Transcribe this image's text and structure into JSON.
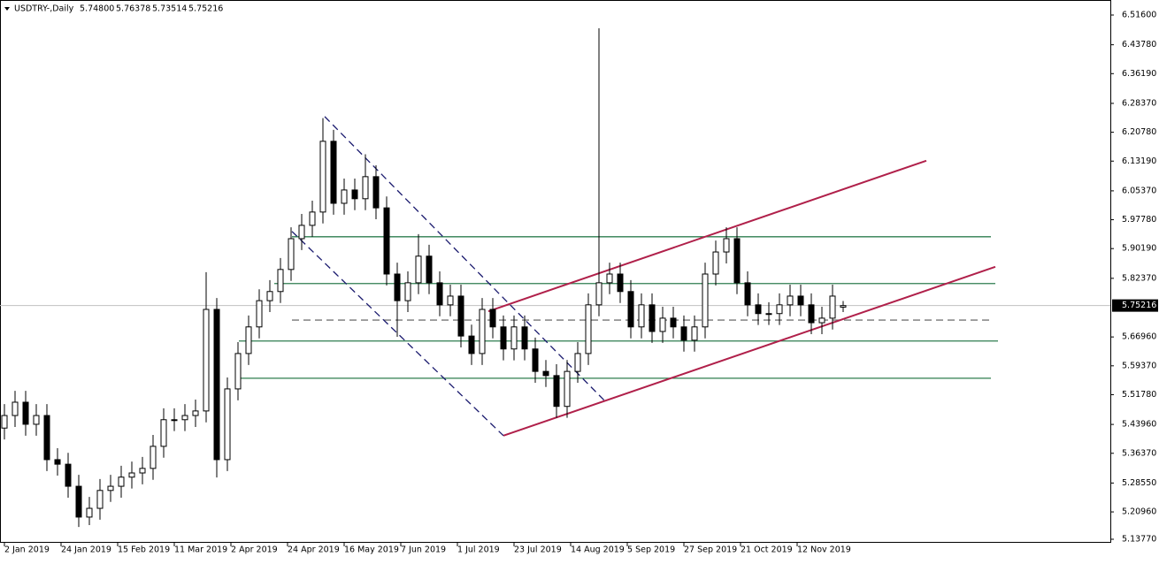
{
  "chart_data": {
    "type": "candlestick",
    "header": "USDTRY-,Daily",
    "ohlc_text": [
      "5.74800",
      "5.76378",
      "5.73514",
      "5.75216"
    ],
    "x": [
      0,
      3,
      6,
      9,
      12,
      15,
      18,
      21,
      24,
      27,
      30,
      33,
      36,
      39,
      42,
      45,
      48,
      51,
      54,
      57,
      60,
      63,
      66,
      69,
      72,
      75,
      78,
      81,
      84,
      87,
      90,
      93,
      96,
      99,
      102,
      105,
      108,
      111,
      114,
      117,
      120,
      123,
      126,
      129,
      132,
      135,
      138,
      141,
      144,
      147,
      150,
      153,
      156,
      159,
      162,
      165,
      168,
      171,
      174,
      177,
      180,
      183,
      186,
      189,
      192,
      195,
      198,
      201,
      204,
      207,
      210,
      213,
      216,
      219,
      222,
      225,
      228,
      231,
      234,
      237
    ],
    "open": [
      5.43,
      5.463,
      5.498,
      5.44,
      5.463,
      5.347,
      5.335,
      5.277,
      5.196,
      5.219,
      5.266,
      5.277,
      5.301,
      5.312,
      5.324,
      5.382,
      5.452,
      5.452,
      5.463,
      5.475,
      5.742,
      5.347,
      5.533,
      5.626,
      5.696,
      5.765,
      5.789,
      5.847,
      5.928,
      5.963,
      5.998,
      6.184,
      6.021,
      6.056,
      6.033,
      6.091,
      6.009,
      5.835,
      5.765,
      5.812,
      5.882,
      5.812,
      5.754,
      5.777,
      5.672,
      5.626,
      5.742,
      5.696,
      5.638,
      5.696,
      5.638,
      5.579,
      5.568,
      5.487,
      5.579,
      5.626,
      5.754,
      5.812,
      5.835,
      5.789,
      5.696,
      5.754,
      5.684,
      5.719,
      5.696,
      5.661,
      5.696,
      5.835,
      5.893,
      5.928,
      5.812,
      5.754,
      5.731,
      5.731,
      5.754,
      5.777,
      5.754,
      5.707,
      5.719,
      5.748
    ],
    "high": [
      5.493,
      5.528,
      5.528,
      5.493,
      5.493,
      5.377,
      5.365,
      5.307,
      5.249,
      5.296,
      5.307,
      5.331,
      5.342,
      5.354,
      5.412,
      5.482,
      5.482,
      5.493,
      5.505,
      5.84,
      5.772,
      5.563,
      5.656,
      5.726,
      5.795,
      5.819,
      5.877,
      5.958,
      5.993,
      6.028,
      6.245,
      6.214,
      6.086,
      6.086,
      6.15,
      6.121,
      6.039,
      5.865,
      5.842,
      5.94,
      5.912,
      5.842,
      5.807,
      5.807,
      5.702,
      5.772,
      5.772,
      5.726,
      5.726,
      5.726,
      5.668,
      5.609,
      5.598,
      5.609,
      5.656,
      5.784,
      6.481,
      5.865,
      5.865,
      5.819,
      5.784,
      5.784,
      5.749,
      5.749,
      5.726,
      5.726,
      5.865,
      5.923,
      5.958,
      5.958,
      5.842,
      5.784,
      5.761,
      5.784,
      5.807,
      5.807,
      5.784,
      5.749,
      5.807,
      5.764
    ],
    "low": [
      5.4,
      5.433,
      5.41,
      5.41,
      5.317,
      5.305,
      5.247,
      5.17,
      5.175,
      5.189,
      5.236,
      5.247,
      5.271,
      5.282,
      5.294,
      5.352,
      5.422,
      5.422,
      5.433,
      5.445,
      5.3,
      5.317,
      5.503,
      5.596,
      5.666,
      5.735,
      5.759,
      5.817,
      5.898,
      5.933,
      5.968,
      5.991,
      5.991,
      6.003,
      6.003,
      5.979,
      5.805,
      5.67,
      5.735,
      5.782,
      5.782,
      5.724,
      5.724,
      5.642,
      5.596,
      5.596,
      5.666,
      5.608,
      5.608,
      5.608,
      5.549,
      5.538,
      5.457,
      5.457,
      5.549,
      5.596,
      5.724,
      5.782,
      5.759,
      5.666,
      5.666,
      5.654,
      5.654,
      5.666,
      5.631,
      5.631,
      5.666,
      5.805,
      5.863,
      5.782,
      5.724,
      5.701,
      5.701,
      5.701,
      5.724,
      5.724,
      5.677,
      5.677,
      5.689,
      5.735
    ],
    "close": [
      5.463,
      5.498,
      5.44,
      5.463,
      5.347,
      5.335,
      5.277,
      5.196,
      5.219,
      5.266,
      5.277,
      5.301,
      5.312,
      5.324,
      5.382,
      5.452,
      5.452,
      5.463,
      5.475,
      5.742,
      5.347,
      5.533,
      5.626,
      5.696,
      5.765,
      5.789,
      5.847,
      5.928,
      5.963,
      5.998,
      6.184,
      6.021,
      6.056,
      6.033,
      6.091,
      6.009,
      5.835,
      5.765,
      5.812,
      5.882,
      5.812,
      5.754,
      5.777,
      5.672,
      5.626,
      5.742,
      5.696,
      5.638,
      5.696,
      5.638,
      5.579,
      5.568,
      5.487,
      5.579,
      5.626,
      5.754,
      5.812,
      5.835,
      5.789,
      5.696,
      5.754,
      5.684,
      5.719,
      5.696,
      5.661,
      5.696,
      5.835,
      5.893,
      5.928,
      5.812,
      5.754,
      5.731,
      5.731,
      5.754,
      5.777,
      5.754,
      5.707,
      5.719,
      5.777,
      5.752
    ],
    "xlim": [
      -1.25,
      312.5
    ],
    "ylim": [
      5.1284,
      6.5555
    ],
    "xticks": [
      {
        "value": 0,
        "label": "2 Jan 2019"
      },
      {
        "value": 16,
        "label": "24 Jan 2019"
      },
      {
        "value": 32,
        "label": "15 Feb 2019"
      },
      {
        "value": 48,
        "label": "11 Mar 2019"
      },
      {
        "value": 64,
        "label": "2 Apr 2019"
      },
      {
        "value": 80,
        "label": "24 Apr 2019"
      },
      {
        "value": 96,
        "label": "16 May 2019"
      },
      {
        "value": 112,
        "label": "7 Jun 2019"
      },
      {
        "value": 128,
        "label": "1 Jul 2019"
      },
      {
        "value": 144,
        "label": "23 Jul 2019"
      },
      {
        "value": 160,
        "label": "14 Aug 2019"
      },
      {
        "value": 176,
        "label": "5 Sep 2019"
      },
      {
        "value": 192,
        "label": "27 Sep 2019"
      },
      {
        "value": 208,
        "label": "21 Oct 2019"
      },
      {
        "value": 224,
        "label": "12 Nov 2019"
      }
    ],
    "yticks": [
      {
        "value": 6.516,
        "label": "6.51600"
      },
      {
        "value": 6.4378,
        "label": "6.43780"
      },
      {
        "value": 6.3619,
        "label": "6.36190"
      },
      {
        "value": 6.2837,
        "label": "6.28370"
      },
      {
        "value": 6.2078,
        "label": "6.20780"
      },
      {
        "value": 6.1319,
        "label": "6.13190"
      },
      {
        "value": 6.0537,
        "label": "6.05370"
      },
      {
        "value": 5.9778,
        "label": "5.97780"
      },
      {
        "value": 5.9019,
        "label": "5.90190"
      },
      {
        "value": 5.8237,
        "label": "5.82370"
      },
      {
        "value": 5.6696,
        "label": "5.66960"
      },
      {
        "value": 5.5937,
        "label": "5.59370"
      },
      {
        "value": 5.5178,
        "label": "5.51780"
      },
      {
        "value": 5.4396,
        "label": "5.43960"
      },
      {
        "value": 5.3637,
        "label": "5.36370"
      },
      {
        "value": 5.2855,
        "label": "5.28550"
      },
      {
        "value": 5.2096,
        "label": "5.20960"
      },
      {
        "value": 5.1377,
        "label": "5.13770"
      }
    ],
    "current_price": {
      "value": 5.75216,
      "label": "5.75216"
    },
    "lines": [
      {
        "x": [
          81.25,
          278.75
        ],
        "y": [
          5.933,
          5.933
        ],
        "color": "#2e7d4f",
        "dash": false
      },
      {
        "x": [
          76.25,
          280
        ],
        "y": [
          5.81,
          5.81
        ],
        "color": "#2e7d4f",
        "dash": false
      },
      {
        "x": [
          66.25,
          280.75
        ],
        "y": [
          5.659,
          5.659
        ],
        "color": "#2e7d4f",
        "dash": false
      },
      {
        "x": [
          65.75,
          278.75
        ],
        "y": [
          5.561,
          5.561
        ],
        "color": "#2e7d4f",
        "dash": false
      },
      {
        "x": [
          81.25,
          278.75
        ],
        "y": [
          5.714,
          5.714
        ],
        "color": "#777777",
        "dash": true
      },
      {
        "x": [
          136.75,
          260.5
        ],
        "y": [
          5.737,
          6.133
        ],
        "color": "#b0204a",
        "dash": false,
        "width": 2
      },
      {
        "x": [
          141,
          280
        ],
        "y": [
          5.41,
          5.854
        ],
        "color": "#b0204a",
        "dash": false,
        "width": 2
      },
      {
        "x": [
          90.5,
          170
        ],
        "y": [
          6.249,
          5.498
        ],
        "color": "#1a1a6e",
        "dash": true
      },
      {
        "x": [
          81.25,
          141
        ],
        "y": [
          5.947,
          5.41
        ],
        "color": "#1a1a6e",
        "dash": true
      }
    ]
  }
}
